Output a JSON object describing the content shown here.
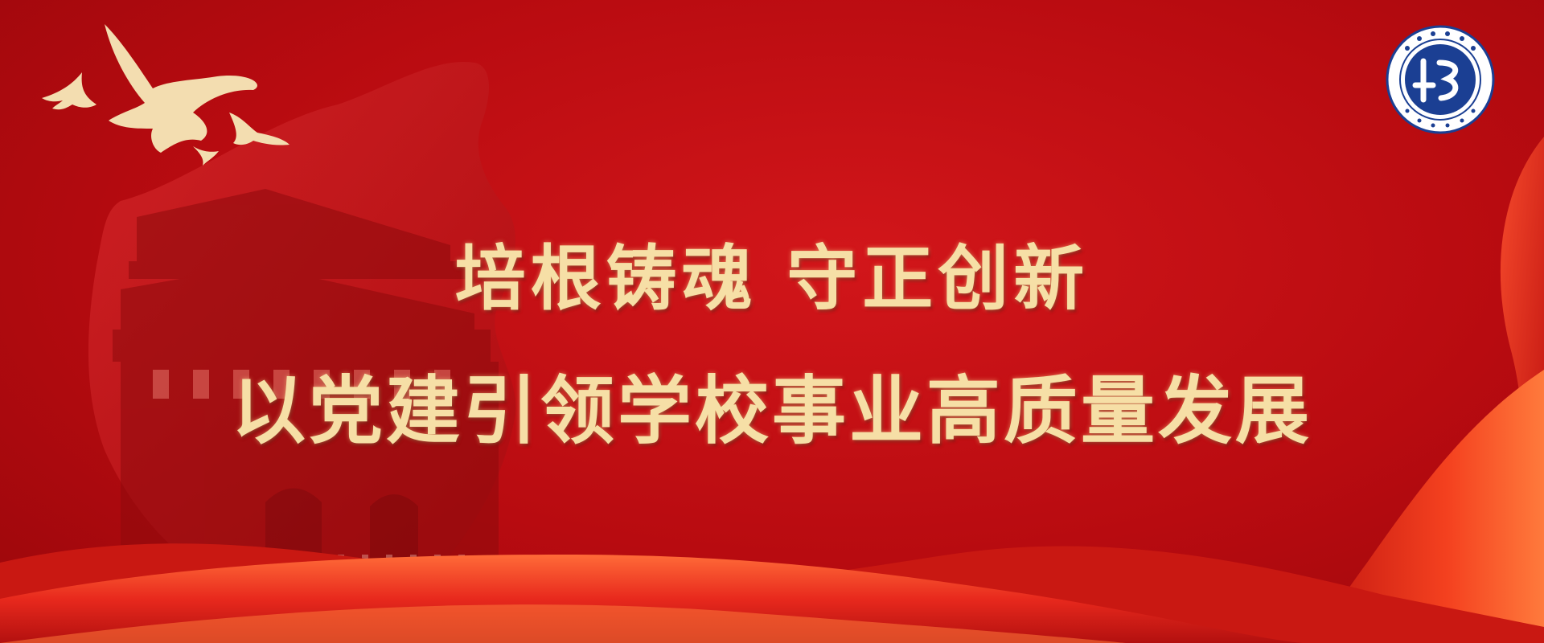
{
  "banner": {
    "headline_line1": "培根铸魂 守正创新",
    "headline_line2": "以党建引领学校事业高质量发展"
  },
  "colors": {
    "background": "#b80a0e",
    "ribbon_light": "#ff5a2a",
    "ribbon_mid": "#e8261c",
    "headline_gold": "#f6dfa6",
    "dove_cream": "#f3ddb0",
    "logo_blue": "#1b3f93"
  },
  "icons": {
    "doves": "dove-icon",
    "school_logo": "school-emblem-icon"
  }
}
